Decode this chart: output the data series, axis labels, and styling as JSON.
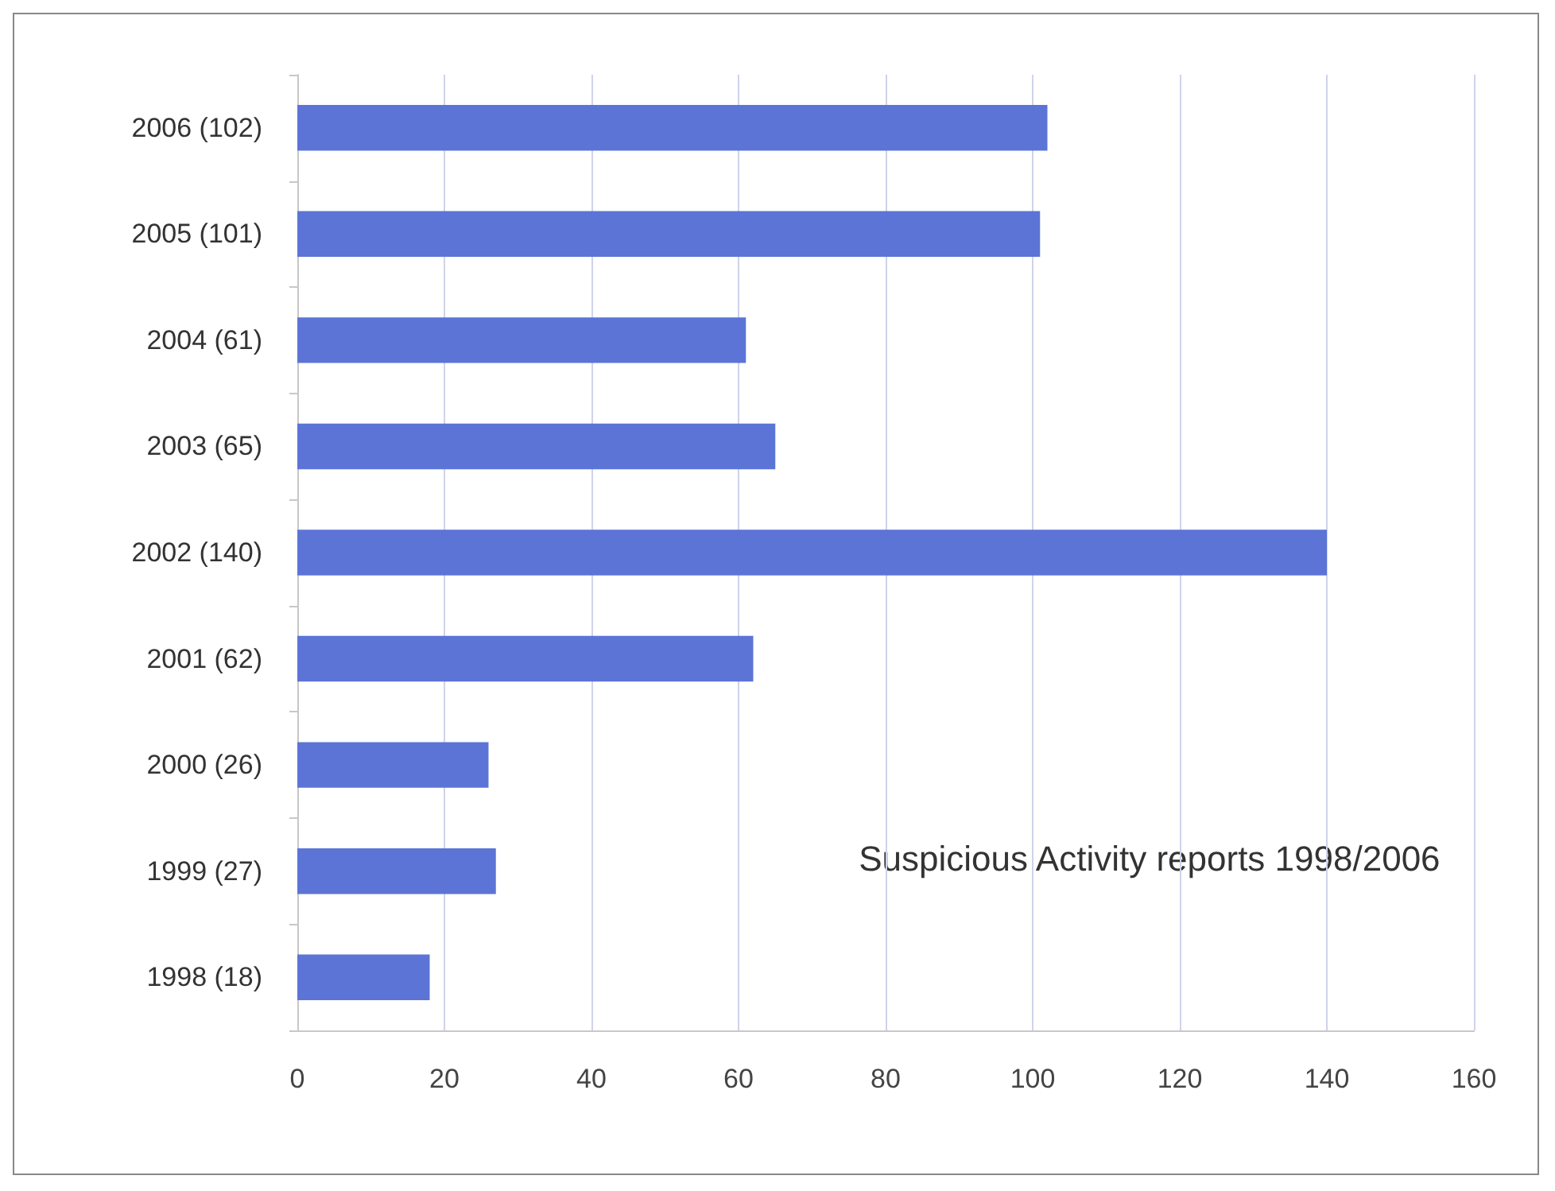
{
  "chart_data": {
    "type": "bar",
    "orientation": "horizontal",
    "categories": [
      "2006 (102)",
      "2005 (101)",
      "2004 (61)",
      "2003 (65)",
      "2002 (140)",
      "2001 (62)",
      "2000 (26)",
      "1999 (27)",
      "1998 (18)"
    ],
    "values": [
      102,
      101,
      61,
      65,
      140,
      62,
      26,
      27,
      18
    ],
    "color": "#5b74d6",
    "xlim": [
      0,
      160
    ],
    "xticks": [
      0,
      20,
      40,
      60,
      80,
      100,
      120,
      140,
      160
    ],
    "grid": "x",
    "annotations": [
      "Suspicious Activity reports 1998/2006"
    ]
  }
}
